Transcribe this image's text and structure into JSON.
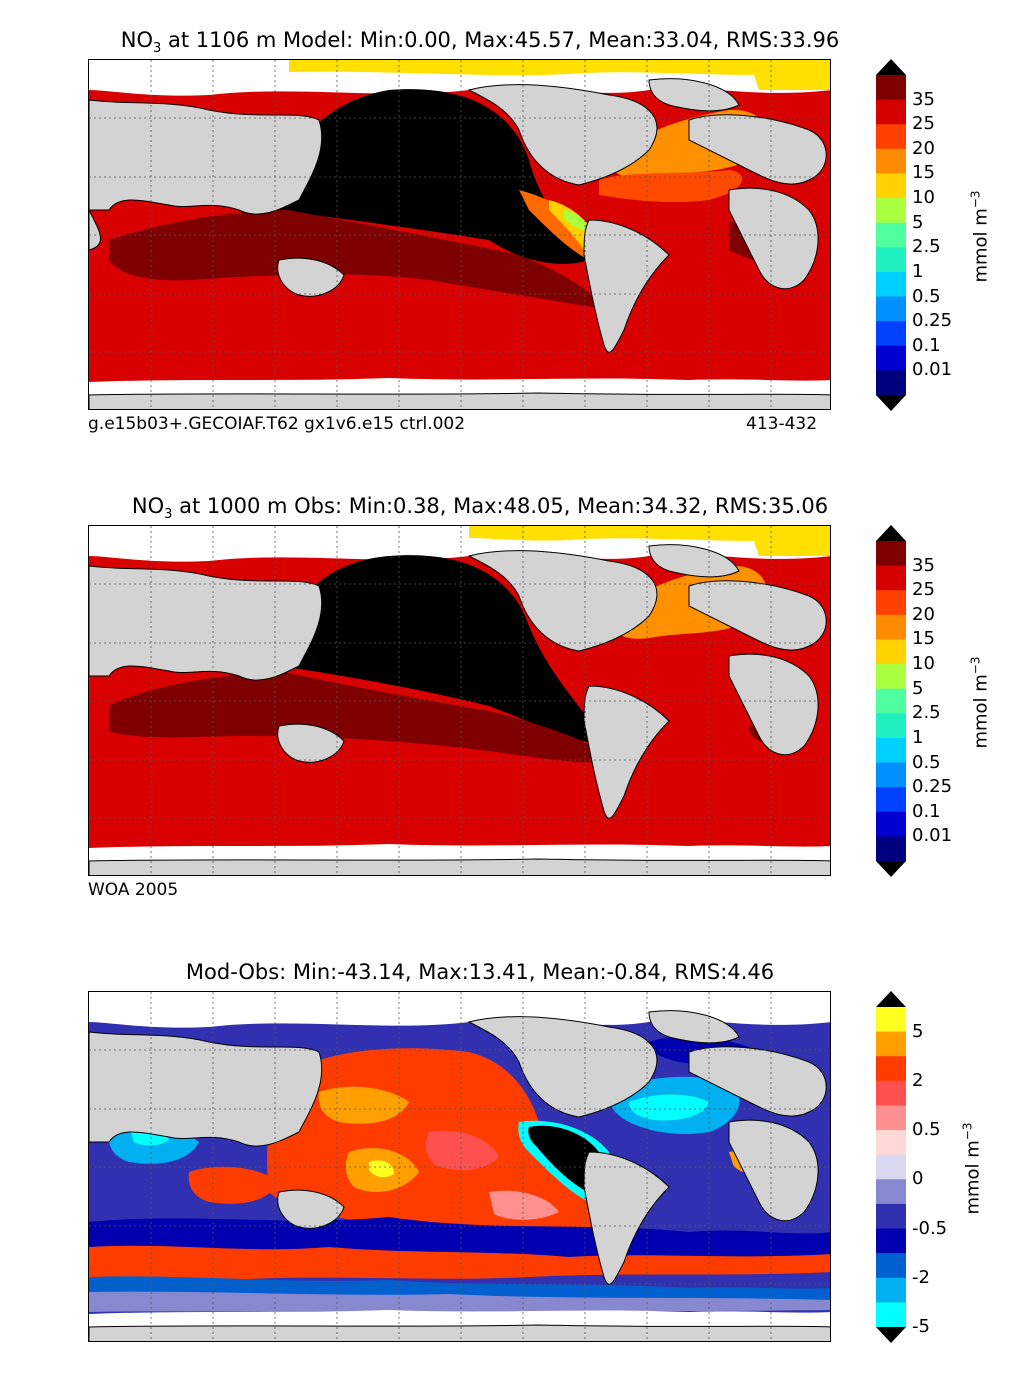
{
  "panels": [
    {
      "id": "model",
      "title_prefix": "NO",
      "title_sub": "3",
      "title_rest": " at 1106 m Model: Min:0.00, Max:45.57, Mean:33.04, RMS:33.96",
      "caption_left": "g.e15b03+.GECOIAF.T62 gx1v6.e15 ctrl.002",
      "caption_right": "413-432"
    },
    {
      "id": "obs",
      "title_prefix": "NO",
      "title_sub": "3",
      "title_rest": " at 1000 m Obs: Min:0.38, Max:48.05, Mean:34.32, RMS:35.06",
      "caption_left": "WOA 2005",
      "caption_right": ""
    },
    {
      "id": "diff",
      "title_prefix": "",
      "title_sub": "",
      "title_rest": "Mod-Obs: Min:-43.14, Max:13.41, Mean:-0.84, RMS:4.46",
      "caption_left": "",
      "caption_right": ""
    }
  ],
  "colorbar_nitrate": {
    "unit_text": "mmol m",
    "unit_exp": "−3",
    "tick_labels": [
      "35",
      "25",
      "20",
      "15",
      "10",
      "5",
      "2.5",
      "1",
      "0.5",
      "0.25",
      "0.1",
      "0.01"
    ],
    "colors_top_to_bottom": [
      "#7f0000",
      "#d50000",
      "#ff4000",
      "#ff8c00",
      "#ffd200",
      "#aaff40",
      "#50ffa0",
      "#20f0c0",
      "#00d0ff",
      "#0090ff",
      "#0040ff",
      "#0000d0",
      "#00007f"
    ],
    "extend_max_color": "#000000",
    "extend_min_color": "#000000"
  },
  "colorbar_diff": {
    "unit_text": "mmol m",
    "unit_exp": "−3",
    "tick_labels": [
      "5",
      "2",
      "0.5",
      "0",
      "-0.5",
      "-2",
      "-5"
    ],
    "colors_top_to_bottom": [
      "#ffff20",
      "#ffa000",
      "#ff3c00",
      "#ff5050",
      "#ff9090",
      "#ffd8d8",
      "#d8d8f0",
      "#8888d0",
      "#3030b0",
      "#0000b0",
      "#0060d0",
      "#00b0f0",
      "#00ffff"
    ],
    "extend_max_color": "#000000",
    "extend_min_color": "#000000"
  },
  "chart_data": [
    {
      "type": "heatmap",
      "title": "NO3 at 1106 m Model: Min:0.00, Max:45.57, Mean:33.04, RMS:33.96",
      "variable": "NO3",
      "depth_m": 1106,
      "stats": {
        "min": 0.0,
        "max": 45.57,
        "mean": 33.04,
        "rms": 33.96
      },
      "colorbar_levels": [
        0.01,
        0.1,
        0.25,
        0.5,
        1,
        2.5,
        5,
        10,
        15,
        20,
        25,
        35
      ],
      "unit": "mmol m-3",
      "grid": true
    },
    {
      "type": "heatmap",
      "title": "NO3 at 1000 m Obs: Min:0.38, Max:48.05, Mean:34.32, RMS:35.06",
      "variable": "NO3",
      "depth_m": 1000,
      "stats": {
        "min": 0.38,
        "max": 48.05,
        "mean": 34.32,
        "rms": 35.06
      },
      "colorbar_levels": [
        0.01,
        0.1,
        0.25,
        0.5,
        1,
        2.5,
        5,
        10,
        15,
        20,
        25,
        35
      ],
      "unit": "mmol m-3",
      "grid": true
    },
    {
      "type": "heatmap",
      "title": "Mod-Obs: Min:-43.14, Max:13.41, Mean:-0.84, RMS:4.46",
      "stats": {
        "min": -43.14,
        "max": 13.41,
        "mean": -0.84,
        "rms": 4.46
      },
      "colorbar_levels": [
        -5,
        -2,
        -0.5,
        0,
        0.5,
        2,
        5
      ],
      "unit": "mmol m-3",
      "grid": true
    }
  ]
}
